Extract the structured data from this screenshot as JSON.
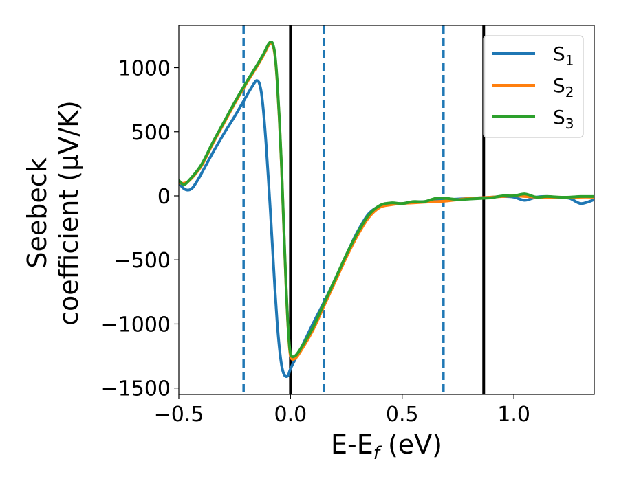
{
  "chart_data": {
    "type": "line",
    "xlabel": "E-E",
    "xlabel_sub": "f",
    "xlabel_unit": " (eV)",
    "ylabel_line1": "Seebeck",
    "ylabel_line2": "coefficient  (μV/K)",
    "xlim": [
      -0.5,
      1.36
    ],
    "ylim": [
      -1550,
      1330
    ],
    "x_ticks": [
      -0.5,
      0.0,
      0.5,
      1.0
    ],
    "x_tick_labels": [
      "−0.5",
      "0.0",
      "0.5",
      "1.0"
    ],
    "y_ticks": [
      -1500,
      -1000,
      -500,
      0,
      500,
      1000
    ],
    "y_tick_labels": [
      "−1500",
      "−1000",
      "−500",
      "0",
      "500",
      "1000"
    ],
    "grid": false,
    "legend_position": "top-right",
    "vertical_lines": [
      {
        "x": -0.21,
        "style": "dashed",
        "color": "#1f77b4"
      },
      {
        "x": 0.0,
        "style": "solid",
        "color": "#000000"
      },
      {
        "x": 0.15,
        "style": "dashed",
        "color": "#1f77b4"
      },
      {
        "x": 0.685,
        "style": "dashed",
        "color": "#1f77b4"
      },
      {
        "x": 0.865,
        "style": "solid",
        "color": "#000000"
      }
    ],
    "series": [
      {
        "name": "S",
        "sub": "1",
        "color": "#1f77b4",
        "x": [
          -0.5,
          -0.48,
          -0.46,
          -0.44,
          -0.42,
          -0.4,
          -0.35,
          -0.3,
          -0.25,
          -0.22,
          -0.2,
          -0.18,
          -0.16,
          -0.15,
          -0.14,
          -0.13,
          -0.12,
          -0.11,
          -0.1,
          -0.09,
          -0.08,
          -0.07,
          -0.06,
          -0.05,
          -0.04,
          -0.03,
          -0.02,
          -0.01,
          0.0,
          0.02,
          0.05,
          0.1,
          0.15,
          0.2,
          0.25,
          0.3,
          0.35,
          0.4,
          0.45,
          0.5,
          0.55,
          0.6,
          0.65,
          0.7,
          0.75,
          0.8,
          0.85,
          0.9,
          0.95,
          1.0,
          1.05,
          1.1,
          1.15,
          1.2,
          1.25,
          1.3,
          1.36
        ],
        "y": [
          100,
          60,
          45,
          60,
          110,
          170,
          330,
          480,
          620,
          710,
          770,
          830,
          885,
          900,
          880,
          800,
          640,
          420,
          160,
          -120,
          -420,
          -720,
          -980,
          -1180,
          -1320,
          -1390,
          -1410,
          -1400,
          -1350,
          -1280,
          -1180,
          -1000,
          -830,
          -650,
          -460,
          -280,
          -140,
          -80,
          -60,
          -60,
          -50,
          -45,
          -40,
          -30,
          -25,
          -20,
          -15,
          -10,
          -5,
          -10,
          -35,
          -10,
          -5,
          -15,
          -20,
          -60,
          -30
        ]
      },
      {
        "name": "S",
        "sub": "2",
        "color": "#ff7f0e",
        "x": [
          -0.5,
          -0.46,
          -0.4,
          -0.35,
          -0.3,
          -0.25,
          -0.2,
          -0.15,
          -0.12,
          -0.1,
          -0.09,
          -0.08,
          -0.07,
          -0.06,
          -0.05,
          -0.04,
          -0.03,
          -0.02,
          -0.01,
          0.0,
          0.02,
          0.05,
          0.1,
          0.15,
          0.2,
          0.25,
          0.3,
          0.35,
          0.4,
          0.45,
          0.5,
          0.55,
          0.6,
          0.65,
          0.7,
          0.75,
          0.8,
          0.85,
          0.9,
          0.95,
          1.0,
          1.05,
          1.1,
          1.15,
          1.2,
          1.25,
          1.3,
          1.36
        ],
        "y": [
          100,
          110,
          230,
          400,
          560,
          720,
          870,
          1010,
          1100,
          1170,
          1190,
          1180,
          1100,
          900,
          600,
          220,
          -250,
          -700,
          -1050,
          -1250,
          -1270,
          -1200,
          -1050,
          -860,
          -670,
          -480,
          -310,
          -170,
          -90,
          -70,
          -60,
          -55,
          -50,
          -45,
          -40,
          -30,
          -20,
          -15,
          -10,
          -5,
          0,
          -5,
          -10,
          -15,
          -10,
          -15,
          -10,
          -10
        ]
      },
      {
        "name": "S",
        "sub": "3",
        "color": "#2ca02c",
        "x": [
          -0.5,
          -0.48,
          -0.46,
          -0.4,
          -0.35,
          -0.3,
          -0.25,
          -0.2,
          -0.15,
          -0.12,
          -0.1,
          -0.09,
          -0.08,
          -0.07,
          -0.06,
          -0.05,
          -0.04,
          -0.03,
          -0.02,
          -0.01,
          0.0,
          0.02,
          0.05,
          0.1,
          0.15,
          0.2,
          0.25,
          0.3,
          0.35,
          0.4,
          0.45,
          0.5,
          0.55,
          0.6,
          0.65,
          0.7,
          0.75,
          0.8,
          0.85,
          0.9,
          0.95,
          1.0,
          1.05,
          1.1,
          1.15,
          1.2,
          1.25,
          1.3,
          1.36
        ],
        "y": [
          120,
          90,
          110,
          240,
          410,
          570,
          730,
          880,
          1020,
          1110,
          1180,
          1200,
          1190,
          1110,
          910,
          610,
          230,
          -240,
          -690,
          -1040,
          -1230,
          -1250,
          -1180,
          -1030,
          -840,
          -650,
          -460,
          -290,
          -150,
          -75,
          -55,
          -60,
          -45,
          -45,
          -20,
          -20,
          -30,
          -25,
          -20,
          -15,
          0,
          0,
          15,
          -10,
          -5,
          -10,
          -10,
          -5,
          -5
        ]
      }
    ]
  }
}
